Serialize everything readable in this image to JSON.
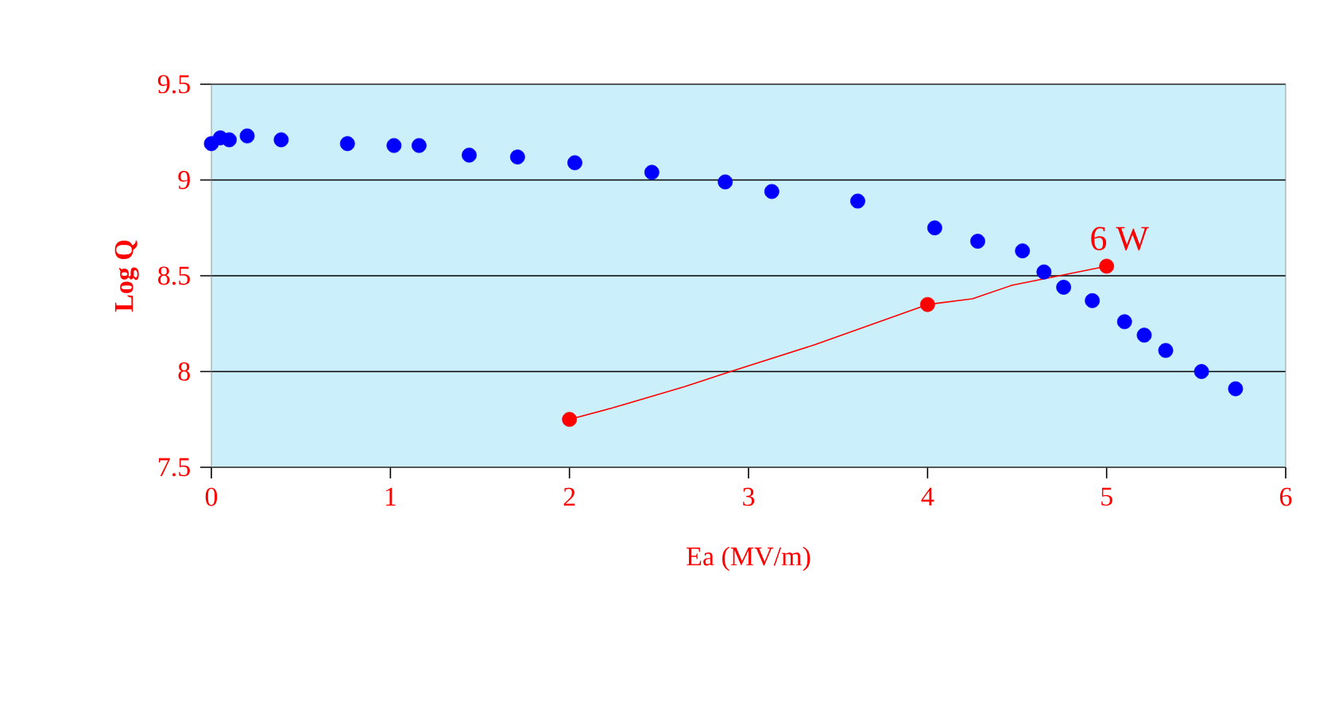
{
  "chart_data": {
    "type": "scatter",
    "xlabel": "Ea (MV/m)",
    "ylabel": "Log Q",
    "xlim": [
      0,
      6
    ],
    "ylim": [
      7.5,
      9.5
    ],
    "xticks": [
      0,
      1,
      2,
      3,
      4,
      5,
      6
    ],
    "yticks": [
      7.5,
      8,
      8.5,
      9,
      9.5
    ],
    "grid": "y",
    "marker": "circle",
    "series": [
      {
        "color": "#0000ff",
        "x": [
          0,
          0.05,
          0.1,
          0.2,
          0.39,
          0.76,
          1.02,
          1.16,
          1.44,
          1.71,
          2.03,
          2.46,
          2.87,
          3.13,
          3.61,
          4.04,
          4.28,
          4.53,
          4.65,
          4.76,
          4.92,
          5.1,
          5.21,
          5.33,
          5.53,
          5.72
        ],
        "values": [
          9.19,
          9.22,
          9.21,
          9.23,
          9.21,
          9.19,
          9.18,
          9.18,
          9.13,
          9.12,
          9.09,
          9.04,
          8.99,
          8.94,
          8.89,
          8.75,
          8.68,
          8.63,
          8.52,
          8.44,
          8.37,
          8.26,
          8.19,
          8.11,
          8.0,
          7.91
        ]
      },
      {
        "type": "line",
        "marker": "none",
        "color": "#ff0000",
        "x": [
          2,
          2.24,
          2.64,
          2.9,
          3.37,
          4,
          4.25,
          4.47,
          5
        ],
        "values": [
          7.75,
          7.81,
          7.92,
          8.0,
          8.14,
          8.35,
          8.38,
          8.45,
          8.55
        ]
      },
      {
        "color": "#ff0000",
        "x": [
          2,
          4,
          5
        ],
        "values": [
          7.75,
          8.35,
          8.55
        ]
      }
    ],
    "annotations": [
      {
        "text": "6 W",
        "x": 5,
        "y": 8.55
      }
    ]
  }
}
